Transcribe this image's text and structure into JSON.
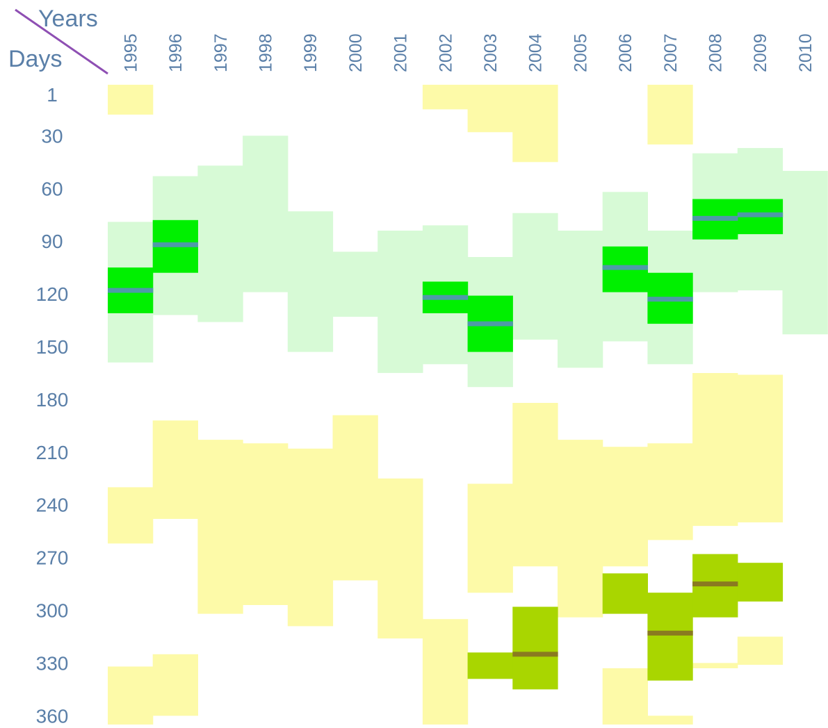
{
  "chart_data": {
    "type": "heatmap",
    "title": "",
    "xlabel": "Years",
    "ylabel": "Days",
    "x": [
      "1995",
      "1996",
      "1997",
      "1998",
      "1999",
      "2000",
      "2001",
      "2002",
      "2003",
      "2004",
      "2005",
      "2006",
      "2007",
      "2008",
      "2009",
      "2010"
    ],
    "y_ticks": [
      1,
      30,
      60,
      90,
      120,
      150,
      180,
      210,
      240,
      270,
      300,
      330,
      360
    ],
    "ylim": [
      1,
      365
    ],
    "grid": false,
    "legend": "none",
    "colors": {
      "axis_text": "#5a7fa8",
      "diagonal": "#8e4fb3",
      "pale_green": "#d7fad6",
      "bright_green": "#00f000",
      "green_marker": "#4f9aa8",
      "pale_yellow": "#fdfaa8",
      "olive_green": "#a9d600",
      "olive_marker": "#8a7a20"
    },
    "series": [
      {
        "name": "pale_yellow",
        "segments": [
          {
            "year": "1995",
            "start": 1,
            "end": 18
          },
          {
            "year": "2002",
            "start": 1,
            "end": 15
          },
          {
            "year": "2003",
            "start": 1,
            "end": 28
          },
          {
            "year": "2004",
            "start": 1,
            "end": 45
          },
          {
            "year": "2007",
            "start": 1,
            "end": 35
          },
          {
            "year": "1995",
            "start": 230,
            "end": 262
          },
          {
            "year": "1995",
            "start": 332,
            "end": 365
          },
          {
            "year": "1996",
            "start": 192,
            "end": 248
          },
          {
            "year": "1996",
            "start": 325,
            "end": 360
          },
          {
            "year": "1997",
            "start": 203,
            "end": 302
          },
          {
            "year": "1998",
            "start": 205,
            "end": 297
          },
          {
            "year": "1999",
            "start": 208,
            "end": 309
          },
          {
            "year": "2000",
            "start": 189,
            "end": 283
          },
          {
            "year": "2001",
            "start": 225,
            "end": 316
          },
          {
            "year": "2002",
            "start": 305,
            "end": 365
          },
          {
            "year": "2003",
            "start": 228,
            "end": 290
          },
          {
            "year": "2004",
            "start": 182,
            "end": 275
          },
          {
            "year": "2005",
            "start": 203,
            "end": 304
          },
          {
            "year": "2006",
            "start": 207,
            "end": 275
          },
          {
            "year": "2006",
            "start": 333,
            "end": 365
          },
          {
            "year": "2007",
            "start": 205,
            "end": 260
          },
          {
            "year": "2007",
            "start": 360,
            "end": 365
          },
          {
            "year": "2008",
            "start": 165,
            "end": 252
          },
          {
            "year": "2008",
            "start": 330,
            "end": 333
          },
          {
            "year": "2009",
            "start": 166,
            "end": 250
          },
          {
            "year": "2009",
            "start": 315,
            "end": 331
          }
        ]
      },
      {
        "name": "pale_green",
        "segments": [
          {
            "year": "1995",
            "start": 79,
            "end": 159
          },
          {
            "year": "1996",
            "start": 53,
            "end": 132
          },
          {
            "year": "1997",
            "start": 47,
            "end": 136
          },
          {
            "year": "1998",
            "start": 30,
            "end": 119
          },
          {
            "year": "1999",
            "start": 73,
            "end": 153
          },
          {
            "year": "2000",
            "start": 96,
            "end": 133
          },
          {
            "year": "2001",
            "start": 84,
            "end": 165
          },
          {
            "year": "2002",
            "start": 81,
            "end": 160
          },
          {
            "year": "2003",
            "start": 99,
            "end": 173
          },
          {
            "year": "2004",
            "start": 74,
            "end": 146
          },
          {
            "year": "2005",
            "start": 84,
            "end": 162
          },
          {
            "year": "2006",
            "start": 62,
            "end": 147
          },
          {
            "year": "2007",
            "start": 84,
            "end": 160
          },
          {
            "year": "2008",
            "start": 40,
            "end": 119
          },
          {
            "year": "2009",
            "start": 37,
            "end": 118
          },
          {
            "year": "2010",
            "start": 50,
            "end": 143
          }
        ]
      },
      {
        "name": "bright_green",
        "segments": [
          {
            "year": "1995",
            "start": 105,
            "end": 131
          },
          {
            "year": "1996",
            "start": 78,
            "end": 108
          },
          {
            "year": "2002",
            "start": 113,
            "end": 131
          },
          {
            "year": "2003",
            "start": 121,
            "end": 153
          },
          {
            "year": "2006",
            "start": 93,
            "end": 119
          },
          {
            "year": "2007",
            "start": 108,
            "end": 137
          },
          {
            "year": "2008",
            "start": 66,
            "end": 89
          },
          {
            "year": "2009",
            "start": 66,
            "end": 86
          }
        ],
        "markers": [
          {
            "year": "1995",
            "day": 118
          },
          {
            "year": "1996",
            "day": 92
          },
          {
            "year": "2002",
            "day": 122
          },
          {
            "year": "2003",
            "day": 137
          },
          {
            "year": "2006",
            "day": 105
          },
          {
            "year": "2007",
            "day": 123
          },
          {
            "year": "2008",
            "day": 77
          },
          {
            "year": "2009",
            "day": 75
          }
        ]
      },
      {
        "name": "olive_green",
        "segments": [
          {
            "year": "2003",
            "start": 324,
            "end": 339
          },
          {
            "year": "2004",
            "start": 298,
            "end": 345
          },
          {
            "year": "2006",
            "start": 279,
            "end": 302
          },
          {
            "year": "2007",
            "start": 290,
            "end": 340
          },
          {
            "year": "2008",
            "start": 268,
            "end": 304
          },
          {
            "year": "2009",
            "start": 273,
            "end": 295
          }
        ],
        "markers": [
          {
            "year": "2004",
            "day": 325
          },
          {
            "year": "2007",
            "day": 313
          },
          {
            "year": "2008",
            "day": 285
          }
        ]
      }
    ]
  }
}
